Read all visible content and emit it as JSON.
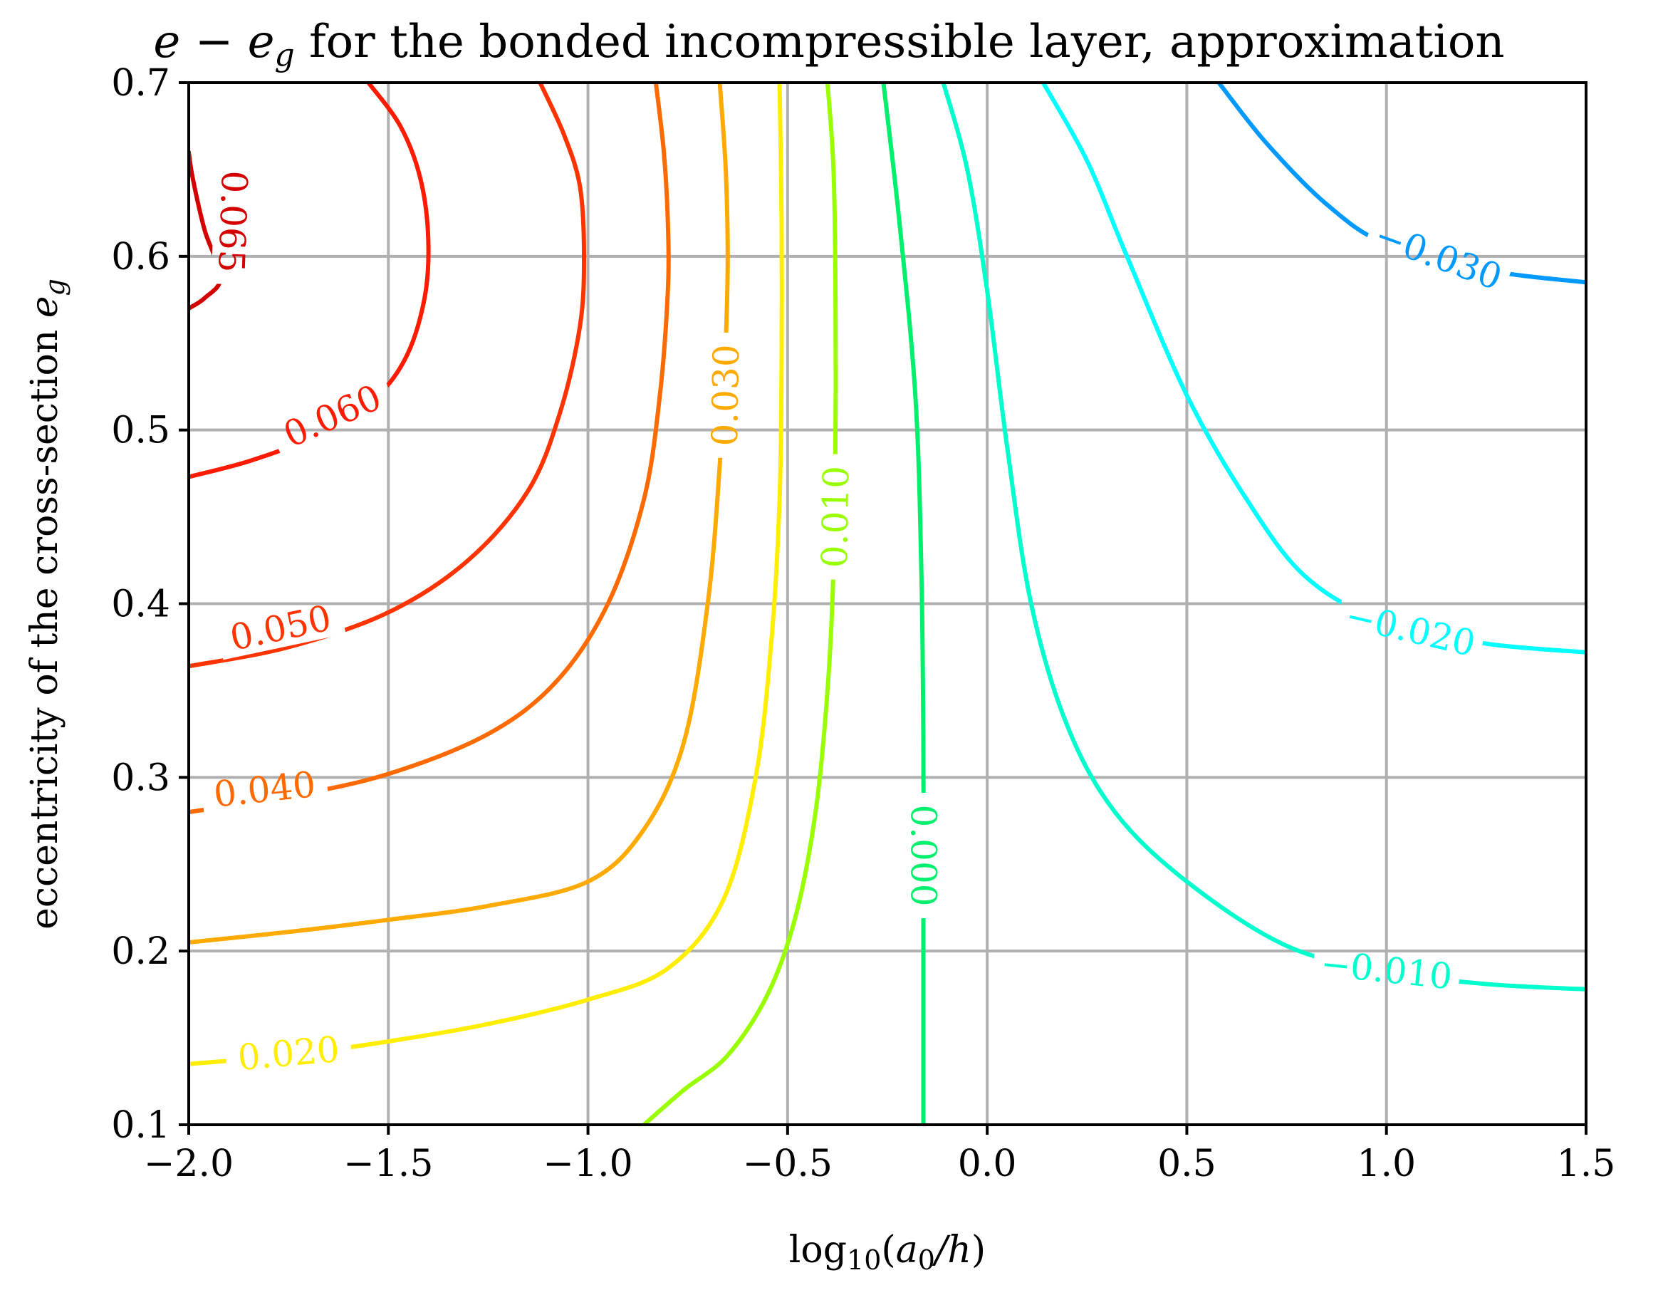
{
  "chart_data": {
    "type": "contour",
    "title": "e − e_g for the bonded incompressible layer, approximation",
    "title_parts": {
      "symbol_e": "e",
      "minus": " − ",
      "symbol_eg": "e",
      "sub_g": "g",
      "rest": " for the bonded incompressible layer, approximation"
    },
    "xlabel": "log10(a0/h)",
    "xlabel_parts": {
      "log": "log",
      "sub10": "10",
      "open": "(",
      "a": "a",
      "sub0": "0",
      "slash_h": "/h",
      "close": ")"
    },
    "ylabel": "eccentricity of the cross-section e_g",
    "ylabel_parts": {
      "text": "eccentricity of the cross-section ",
      "e": "e",
      "sub_g": "g"
    },
    "xlim": [
      -2.0,
      1.5
    ],
    "ylim": [
      0.1,
      0.7
    ],
    "xticks": [
      -2.0,
      -1.5,
      -1.0,
      -0.5,
      0.0,
      0.5,
      1.0,
      1.5
    ],
    "xtick_labels": [
      "−2.0",
      "−1.5",
      "−1.0",
      "−0.5",
      "0.0",
      "0.5",
      "1.0",
      "1.5"
    ],
    "yticks": [
      0.1,
      0.2,
      0.3,
      0.4,
      0.5,
      0.6,
      0.7
    ],
    "ytick_labels": [
      "0.1",
      "0.2",
      "0.3",
      "0.4",
      "0.5",
      "0.6",
      "0.7"
    ],
    "grid": true,
    "colormap": "hsv-like (red = high, blue = low)",
    "levels": [
      {
        "value": 0.065,
        "label": "0.065",
        "color": "#d40000",
        "points": [
          [
            -2.0,
            0.66
          ],
          [
            -1.99,
            0.645
          ],
          [
            -1.96,
            0.615
          ],
          [
            -1.92,
            0.588
          ],
          [
            -1.96,
            0.576
          ],
          [
            -2.0,
            0.57
          ]
        ]
      },
      {
        "value": 0.06,
        "label": "0.060",
        "color": "#ff1a00",
        "points": [
          [
            -1.55,
            0.7
          ],
          [
            -1.47,
            0.675
          ],
          [
            -1.42,
            0.645
          ],
          [
            -1.4,
            0.61
          ],
          [
            -1.41,
            0.575
          ],
          [
            -1.46,
            0.54
          ],
          [
            -1.55,
            0.515
          ],
          [
            -1.7,
            0.495
          ],
          [
            -1.85,
            0.482
          ],
          [
            -2.0,
            0.473
          ]
        ]
      },
      {
        "value": 0.05,
        "label": "0.050",
        "color": "#ff3300",
        "points": [
          [
            -1.12,
            0.7
          ],
          [
            -1.06,
            0.67
          ],
          [
            -1.02,
            0.64
          ],
          [
            -1.01,
            0.6
          ],
          [
            -1.02,
            0.56
          ],
          [
            -1.07,
            0.51
          ],
          [
            -1.15,
            0.465
          ],
          [
            -1.3,
            0.425
          ],
          [
            -1.5,
            0.395
          ],
          [
            -1.75,
            0.375
          ],
          [
            -2.0,
            0.364
          ]
        ]
      },
      {
        "value": 0.04,
        "label": "0.040",
        "color": "#ff6a00",
        "points": [
          [
            -0.83,
            0.7
          ],
          [
            -0.81,
            0.66
          ],
          [
            -0.8,
            0.62
          ],
          [
            -0.8,
            0.58
          ],
          [
            -0.82,
            0.52
          ],
          [
            -0.86,
            0.46
          ],
          [
            -0.95,
            0.4
          ],
          [
            -1.08,
            0.355
          ],
          [
            -1.25,
            0.325
          ],
          [
            -1.5,
            0.302
          ],
          [
            -1.75,
            0.289
          ],
          [
            -2.0,
            0.28
          ]
        ]
      },
      {
        "value": 0.03,
        "label": "0.030",
        "color": "#ffaa00",
        "points": [
          [
            -0.67,
            0.7
          ],
          [
            -0.655,
            0.65
          ],
          [
            -0.65,
            0.6
          ],
          [
            -0.655,
            0.55
          ],
          [
            -0.67,
            0.48
          ],
          [
            -0.7,
            0.4
          ],
          [
            -0.76,
            0.32
          ],
          [
            -0.86,
            0.27
          ],
          [
            -1.0,
            0.24
          ],
          [
            -1.25,
            0.226
          ],
          [
            -1.5,
            0.218
          ],
          [
            -1.75,
            0.211
          ],
          [
            -2.0,
            0.205
          ]
        ]
      },
      {
        "value": 0.02,
        "label": "0.020",
        "color": "#ffee00",
        "points": [
          [
            -0.52,
            0.7
          ],
          [
            -0.515,
            0.62
          ],
          [
            -0.515,
            0.54
          ],
          [
            -0.52,
            0.46
          ],
          [
            -0.54,
            0.38
          ],
          [
            -0.58,
            0.3
          ],
          [
            -0.66,
            0.23
          ],
          [
            -0.8,
            0.19
          ],
          [
            -1.0,
            0.172
          ],
          [
            -1.25,
            0.158
          ],
          [
            -1.5,
            0.148
          ],
          [
            -1.75,
            0.14
          ],
          [
            -2.0,
            0.135
          ]
        ]
      },
      {
        "value": 0.01,
        "label": "0.010",
        "color": "#99ff00",
        "points": [
          [
            -0.4,
            0.7
          ],
          [
            -0.385,
            0.65
          ],
          [
            -0.38,
            0.58
          ],
          [
            -0.38,
            0.5
          ],
          [
            -0.385,
            0.42
          ],
          [
            -0.4,
            0.35
          ],
          [
            -0.43,
            0.28
          ],
          [
            -0.48,
            0.22
          ],
          [
            -0.55,
            0.175
          ],
          [
            -0.65,
            0.14
          ],
          [
            -0.76,
            0.12
          ],
          [
            -0.86,
            0.1
          ]
        ]
      },
      {
        "value": 0.0,
        "label": "0.000",
        "color": "#00f06e",
        "points": [
          [
            -0.26,
            0.7
          ],
          [
            -0.22,
            0.62
          ],
          [
            -0.18,
            0.52
          ],
          [
            -0.165,
            0.42
          ],
          [
            -0.16,
            0.32
          ],
          [
            -0.16,
            0.22
          ],
          [
            -0.16,
            0.1
          ]
        ]
      },
      {
        "value": -0.01,
        "label": "−0.010",
        "color": "#00ffcc",
        "points": [
          [
            -0.11,
            0.7
          ],
          [
            -0.05,
            0.65
          ],
          [
            0.0,
            0.58
          ],
          [
            0.05,
            0.49
          ],
          [
            0.11,
            0.4
          ],
          [
            0.2,
            0.33
          ],
          [
            0.32,
            0.28
          ],
          [
            0.5,
            0.24
          ],
          [
            0.75,
            0.203
          ],
          [
            1.0,
            0.188
          ],
          [
            1.25,
            0.181
          ],
          [
            1.5,
            0.178
          ]
        ]
      },
      {
        "value": -0.02,
        "label": "−0.020",
        "color": "#00ffff",
        "points": [
          [
            0.14,
            0.7
          ],
          [
            0.25,
            0.655
          ],
          [
            0.35,
            0.6
          ],
          [
            0.5,
            0.52
          ],
          [
            0.65,
            0.46
          ],
          [
            0.8,
            0.415
          ],
          [
            1.0,
            0.389
          ],
          [
            1.25,
            0.377
          ],
          [
            1.5,
            0.372
          ]
        ]
      },
      {
        "value": -0.03,
        "label": "−0.030",
        "color": "#0099ff",
        "points": [
          [
            0.58,
            0.7
          ],
          [
            0.7,
            0.665
          ],
          [
            0.85,
            0.63
          ],
          [
            1.0,
            0.607
          ],
          [
            1.25,
            0.592
          ],
          [
            1.5,
            0.585
          ]
        ]
      }
    ],
    "labels": [
      {
        "level": 0.065,
        "text": "0.065",
        "x": -1.89,
        "y": 0.62,
        "angle": 92
      },
      {
        "level": 0.06,
        "text": "0.060",
        "x": -1.64,
        "y": 0.508,
        "angle": -24
      },
      {
        "level": 0.05,
        "text": "0.050",
        "x": -1.77,
        "y": 0.386,
        "angle": -12
      },
      {
        "level": 0.04,
        "text": "0.040",
        "x": -1.81,
        "y": 0.293,
        "angle": -6
      },
      {
        "level": 0.03,
        "text": "0.030",
        "x": -0.655,
        "y": 0.52,
        "angle": -89
      },
      {
        "level": 0.02,
        "text": "0.020",
        "x": -1.75,
        "y": 0.141,
        "angle": -5
      },
      {
        "level": 0.01,
        "text": "0.010",
        "x": -0.38,
        "y": 0.45,
        "angle": -89
      },
      {
        "level": 0.0,
        "text": "0.000",
        "x": -0.16,
        "y": 0.255,
        "angle": 90
      },
      {
        "level": -0.01,
        "text": "−0.010",
        "x": 1.0,
        "y": 0.189,
        "angle": 6
      },
      {
        "level": -0.02,
        "text": "−0.020",
        "x": 1.06,
        "y": 0.385,
        "angle": 13
      },
      {
        "level": -0.03,
        "text": "−0.030",
        "x": 1.13,
        "y": 0.6,
        "angle": 20
      }
    ]
  }
}
